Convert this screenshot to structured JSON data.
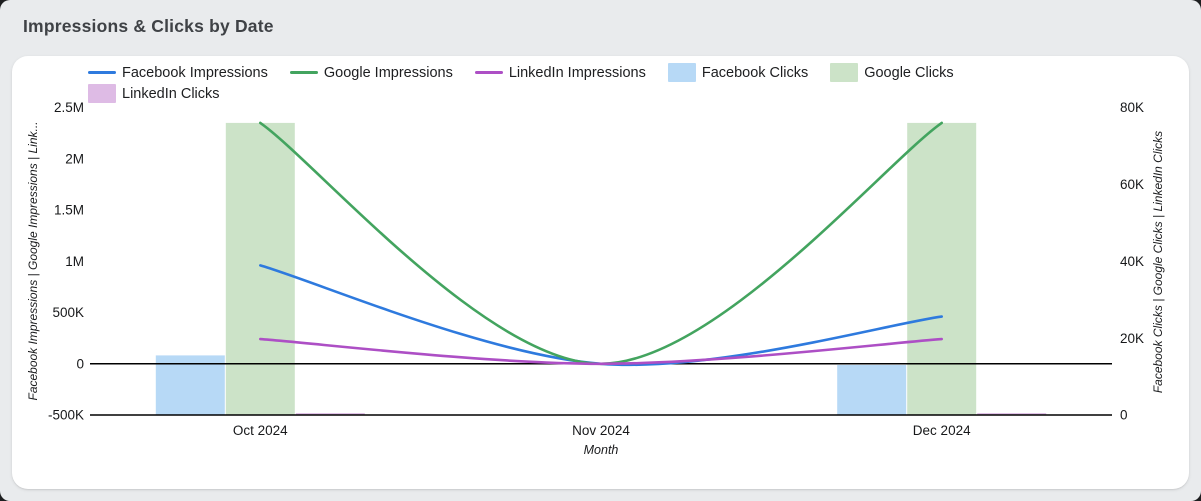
{
  "window": {
    "title": "Impressions & Clicks by Date"
  },
  "chart_data": {
    "type": "combo (grouped bars + smooth lines, dual y-axes)",
    "title": "Impressions & Clicks by Date",
    "categories": [
      "Oct 2024",
      "Nov 2024",
      "Dec 2024"
    ],
    "x_axis": {
      "title": "Month"
    },
    "left_axis": {
      "title": "Facebook Impressions | Google Impressions | Link...",
      "min": -500000,
      "max": 2500000,
      "ticks": [
        {
          "value": 2500000,
          "label": "2.5M"
        },
        {
          "value": 2000000,
          "label": "2M"
        },
        {
          "value": 1500000,
          "label": "1.5M"
        },
        {
          "value": 1000000,
          "label": "1M"
        },
        {
          "value": 500000,
          "label": "500K"
        },
        {
          "value": 0,
          "label": "0"
        },
        {
          "value": -500000,
          "label": "-500K"
        }
      ]
    },
    "right_axis": {
      "title": "Facebook Clicks | Google Clicks | LinkedIn Clicks",
      "min": 0,
      "max": 80000,
      "ticks": [
        {
          "value": 80000,
          "label": "80K"
        },
        {
          "value": 60000,
          "label": "60K"
        },
        {
          "value": 40000,
          "label": "40K"
        },
        {
          "value": 20000,
          "label": "20K"
        },
        {
          "value": 0,
          "label": "0"
        }
      ]
    },
    "line_series": [
      {
        "name": "Facebook Impressions",
        "axis": "left",
        "color": "#2e7ade",
        "values": [
          960000,
          0,
          460000
        ]
      },
      {
        "name": "Google Impressions",
        "axis": "left",
        "color": "#43a45f",
        "values": [
          2350000,
          0,
          2350000
        ]
      },
      {
        "name": "LinkedIn Impressions",
        "axis": "left",
        "color": "#ad4fc5",
        "values": [
          240000,
          0,
          240000
        ]
      }
    ],
    "bar_series": [
      {
        "name": "Facebook Clicks",
        "axis": "right",
        "color": "#b7d9f6",
        "values": [
          15500,
          0,
          13000
        ]
      },
      {
        "name": "Google Clicks",
        "axis": "right",
        "color": "#cce3c8",
        "values": [
          76000,
          0,
          76000
        ]
      },
      {
        "name": "LinkedIn Clicks",
        "axis": "right",
        "color": "#debbe5",
        "values": [
          500,
          0,
          500
        ]
      }
    ],
    "legend_position": "top",
    "grid": "off",
    "baseline_color": "#000000"
  },
  "theme": {
    "page_bg": "#e9ebed",
    "card_bg": "#ffffff",
    "title_color": "#3f4246",
    "text_color": "#17181a"
  }
}
